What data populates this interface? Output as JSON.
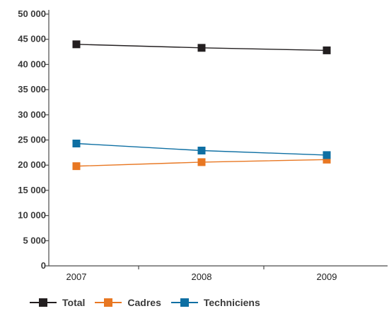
{
  "chart_data": {
    "type": "line",
    "categories": [
      "2007",
      "2008",
      "2009"
    ],
    "ylim": [
      0,
      50000
    ],
    "yticks": [
      0,
      5000,
      10000,
      15000,
      20000,
      25000,
      30000,
      35000,
      40000,
      45000,
      50000
    ],
    "ytick_labels": [
      "0",
      "5 000",
      "10 000",
      "15 000",
      "20 000",
      "25 000",
      "30 000",
      "35 000",
      "40 000",
      "45 000",
      "50 000"
    ],
    "grid": false,
    "legend_position": "bottom-left",
    "series": [
      {
        "name": "Total",
        "color": "#231f20",
        "values": [
          44000,
          43300,
          42800
        ]
      },
      {
        "name": "Cadres",
        "color": "#e87722",
        "values": [
          19800,
          20600,
          21100
        ]
      },
      {
        "name": "Techniciens",
        "color": "#0e6fa3",
        "values": [
          24300,
          22900,
          22000
        ]
      }
    ]
  }
}
